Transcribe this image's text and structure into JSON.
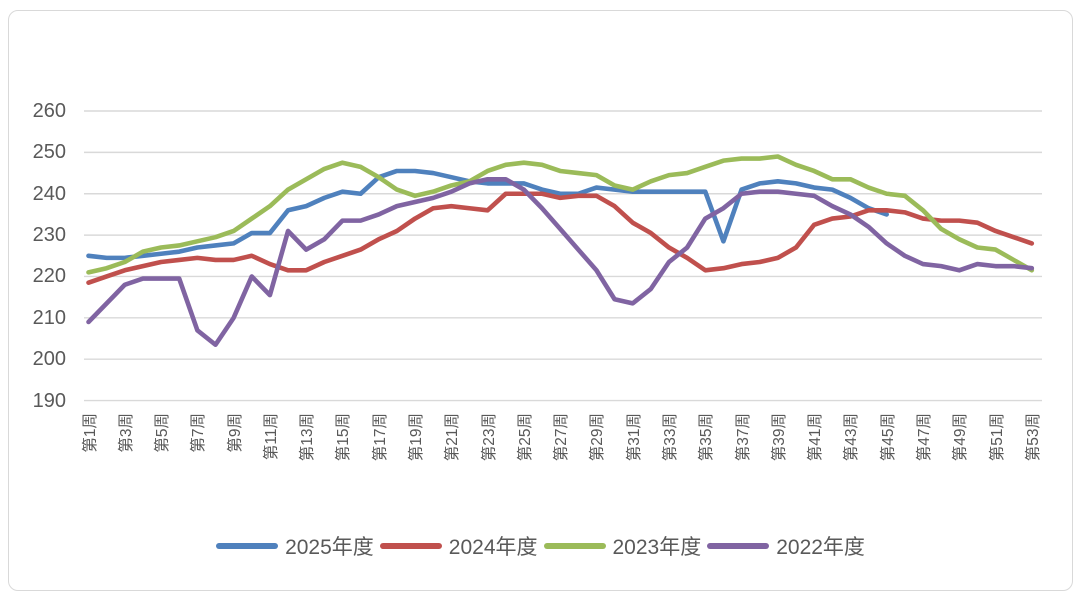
{
  "chart_data": {
    "type": "line",
    "title": "",
    "xlabel": "",
    "ylabel": "",
    "ylim": [
      190,
      260
    ],
    "y_tick_step": 10,
    "y_tick_labels": [
      "260",
      "250",
      "240",
      "230",
      "220",
      "210",
      "200",
      "190"
    ],
    "x_tick_labels": [
      "第1周",
      "第3周",
      "第5周",
      "第7周",
      "第9周",
      "第11周",
      "第13周",
      "第15周",
      "第17周",
      "第19周",
      "第21周",
      "第23周",
      "第25周",
      "第27周",
      "第29周",
      "第31周",
      "第33周",
      "第35周",
      "第37周",
      "第39周",
      "第41周",
      "第43周",
      "第45周",
      "第47周",
      "第49周",
      "第51周",
      "第53周"
    ],
    "x_weeks_total": 53,
    "grid": true,
    "legend_position": "bottom",
    "colors": {
      "gridline": "#d9d9d9",
      "axis_text": "#595959",
      "border": "#d9d9d9",
      "background": "#ffffff"
    },
    "series": [
      {
        "name": "2025年度",
        "color": "#4F81BD",
        "values": [
          225,
          224.5,
          224.5,
          225,
          225.5,
          226,
          227,
          227.5,
          228,
          230.5,
          230.5,
          236,
          237,
          239,
          240.5,
          240,
          244,
          245.5,
          245.5,
          245,
          244,
          243,
          242.5,
          242.5,
          242.5,
          241,
          240,
          240,
          241.5,
          241,
          240.5,
          240.5,
          240.5,
          240.5,
          240.5,
          228.5,
          241,
          242.5,
          243,
          242.5,
          241.5,
          241,
          239,
          236.5,
          235
        ]
      },
      {
        "name": "2024年度",
        "color": "#C0504D",
        "values": [
          218.5,
          220,
          221.5,
          222.5,
          223.5,
          224,
          224.5,
          224,
          224,
          225,
          223,
          221.5,
          221.5,
          223.5,
          225,
          226.5,
          229,
          231,
          234,
          236.5,
          237,
          236.5,
          236,
          240,
          240,
          240,
          239,
          239.5,
          239.5,
          237,
          233,
          230.5,
          227,
          224.5,
          221.5,
          222,
          223,
          223.5,
          224.5,
          227,
          232.5,
          234,
          234.5,
          236,
          236,
          235.5,
          234,
          233.5,
          233.5,
          233,
          231,
          229.5,
          228
        ]
      },
      {
        "name": "2023年度",
        "color": "#9BBB59",
        "values": [
          221,
          222,
          223.5,
          226,
          227,
          227.5,
          228.5,
          229.5,
          231,
          234,
          237,
          241,
          243.5,
          246,
          247.5,
          246.5,
          244,
          241,
          239.5,
          240.5,
          242,
          243,
          245.5,
          247,
          247.5,
          247,
          245.5,
          245,
          244.5,
          242,
          241,
          243,
          244.5,
          245,
          246.5,
          248,
          248.5,
          248.5,
          249,
          247,
          245.5,
          243.5,
          243.5,
          241.5,
          240,
          239.5,
          236,
          231.5,
          229,
          227,
          226.5,
          224,
          221.5
        ]
      },
      {
        "name": "2022年度",
        "color": "#8064A2",
        "values": [
          209,
          213.5,
          218,
          219.5,
          219.5,
          219.5,
          207,
          203.5,
          210,
          220,
          215.5,
          231,
          226.5,
          229,
          233.5,
          233.5,
          235,
          237,
          238,
          239,
          240.5,
          242.5,
          243.5,
          243.5,
          241,
          236.5,
          231.5,
          226.5,
          221.5,
          214.5,
          213.5,
          217,
          223.5,
          227,
          234,
          236.5,
          240,
          240.5,
          240.5,
          240,
          239.5,
          237,
          235,
          232,
          228,
          225,
          223,
          222.5,
          221.5,
          223,
          222.5,
          222.5,
          222
        ]
      }
    ]
  }
}
